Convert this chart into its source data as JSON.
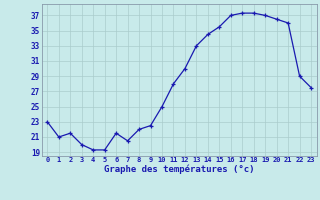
{
  "x": [
    0,
    1,
    2,
    3,
    4,
    5,
    6,
    7,
    8,
    9,
    10,
    11,
    12,
    13,
    14,
    15,
    16,
    17,
    18,
    19,
    20,
    21,
    22,
    23
  ],
  "y": [
    23,
    21,
    21.5,
    20,
    19.3,
    19.3,
    21.5,
    20.5,
    22,
    22.5,
    25,
    28,
    30,
    33,
    34.5,
    35.5,
    37,
    37.3,
    37.3,
    37,
    36.5,
    36,
    29,
    27.5
  ],
  "line_color": "#1a1ab0",
  "marker": "+",
  "bg_color": "#c8eaea",
  "grid_color": "#aacccc",
  "xlabel": "Graphe des températures (°c)",
  "ylabel_ticks": [
    19,
    21,
    23,
    25,
    27,
    29,
    31,
    33,
    35,
    37
  ],
  "ytick_labels": [
    "19",
    "21",
    "23",
    "25",
    "27",
    "29",
    "31",
    "33",
    "35",
    "37"
  ],
  "xtick_labels": [
    "0",
    "1",
    "2",
    "3",
    "4",
    "5",
    "6",
    "7",
    "8",
    "9",
    "10",
    "11",
    "12",
    "13",
    "14",
    "15",
    "16",
    "17",
    "18",
    "19",
    "20",
    "21",
    "22",
    "23"
  ],
  "ylim": [
    18.5,
    38.5
  ],
  "xlim": [
    -0.5,
    23.5
  ]
}
